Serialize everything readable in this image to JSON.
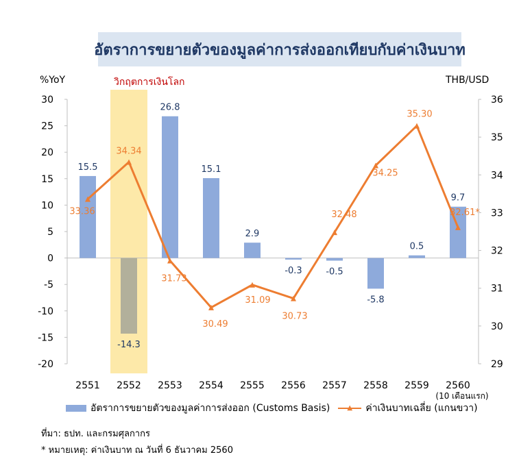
{
  "title": "อัตราการขยายตัวของมูลค่าการส่งออกเทียบกับค่าเงินบาท",
  "y_left_unit": "%YoY",
  "y_right_unit": "THB/USD",
  "crisis_label": "วิกฤตการเงินโลก",
  "chart_data": {
    "type": "bar+line",
    "categories": [
      "2551",
      "2552",
      "2553",
      "2554",
      "2555",
      "2556",
      "2557",
      "2558",
      "2559",
      "2560"
    ],
    "category_note": "(10 เดือนแรก)",
    "highlight_category": "2552",
    "series": [
      {
        "name": "อัตราการขยายตัวของมูลค่าการส่งออก (Customs Basis)",
        "type": "bar",
        "axis": "left",
        "values": [
          15.5,
          -14.3,
          26.8,
          15.1,
          2.9,
          -0.3,
          -0.5,
          -5.8,
          0.5,
          9.7
        ],
        "labels": [
          "15.5",
          "-14.3",
          "26.8",
          "15.1",
          "2.9",
          "-0.3",
          "-0.5",
          "-5.8",
          "0.5",
          "9.7"
        ]
      },
      {
        "name": "ค่าเงินบาทเฉลี่ย (แกนขวา)",
        "type": "line",
        "axis": "right",
        "values": [
          33.36,
          34.34,
          31.73,
          30.49,
          31.09,
          30.73,
          32.48,
          34.25,
          35.3,
          32.61
        ],
        "labels": [
          "33.36",
          "34.34",
          "31.73",
          "30.49",
          "31.09",
          "30.73",
          "32.48",
          "34.25",
          "35.30",
          "32.61*"
        ]
      }
    ],
    "y_left": {
      "min": -20,
      "max": 30,
      "ticks": [
        "30",
        "25",
        "20",
        "15",
        "10",
        "5",
        "0",
        "-5",
        "-10",
        "-15",
        "-20"
      ]
    },
    "y_right": {
      "min": 29,
      "max": 36,
      "ticks": [
        "36",
        "35",
        "34",
        "33",
        "32",
        "31",
        "30",
        "29"
      ]
    },
    "colors": {
      "bar": "#8eaadb",
      "bar_highlight": "#b2b09b",
      "line": "#ed7d31",
      "highlight_band": "#fde9a9",
      "bar_label": "#1f3864"
    },
    "legend_position": "bottom"
  },
  "legend": {
    "bar": "อัตราการขยายตัวของมูลค่าการส่งออก (Customs Basis)",
    "line": "ค่าเงินบาทเฉลี่ย (แกนขวา)"
  },
  "notes": {
    "source": "ที่มา: ธปท. และกรมศุลกากร",
    "remark": "* หมายเหตุ: ค่าเงินบาท ณ วันที่ 6 ธันวาคม 2560"
  }
}
